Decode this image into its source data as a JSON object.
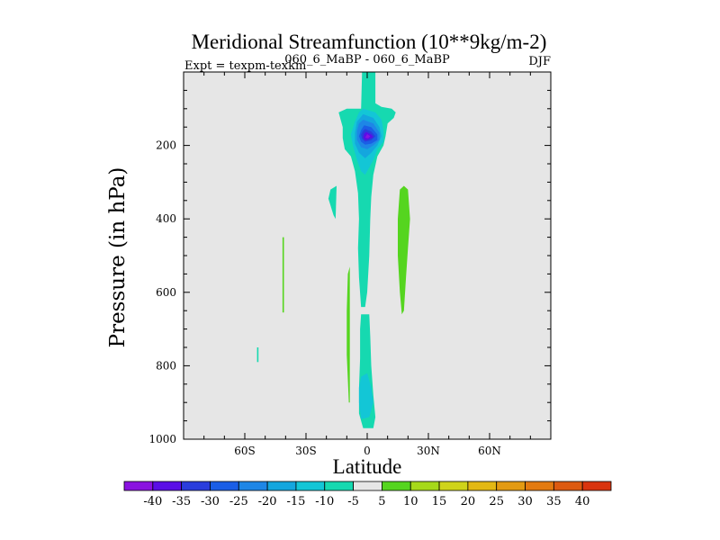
{
  "chart_data": {
    "type": "filled-contour",
    "title": "Meridional Streamfunction (10**9kg/m-2)",
    "subtitle_left": "Expt = texpm-texkm",
    "subtitle_center": "060_6_MaBP - 060_6_MaBP",
    "subtitle_right": "DJF",
    "xlabel": "Latitude",
    "ylabel": "Pressure (in hPa)",
    "xlim": [
      -90,
      90
    ],
    "ylim": [
      1000,
      0
    ],
    "x_ticks": [
      {
        "value": -60,
        "label": "60S"
      },
      {
        "value": -30,
        "label": "30S"
      },
      {
        "value": 0,
        "label": "0"
      },
      {
        "value": 30,
        "label": "30N"
      },
      {
        "value": 60,
        "label": "60N"
      }
    ],
    "y_ticks": [
      {
        "value": 200,
        "label": "200"
      },
      {
        "value": 400,
        "label": "400"
      },
      {
        "value": 600,
        "label": "600"
      },
      {
        "value": 800,
        "label": "800"
      },
      {
        "value": 1000,
        "label": "1000"
      }
    ],
    "background_fill": "#e6e6e6",
    "colorbar": {
      "labels": [
        "-40",
        "-35",
        "-30",
        "-25",
        "-20",
        "-15",
        "-10",
        "-5",
        "5",
        "10",
        "15",
        "20",
        "25",
        "30",
        "35",
        "40"
      ],
      "colors": [
        "#8a12e0",
        "#5a0ee6",
        "#2a3ddc",
        "#1a5ee6",
        "#1e86e6",
        "#14a6de",
        "#13c6d6",
        "#16d9b0",
        "#e6e6e6",
        "#55d51f",
        "#a6d91a",
        "#cfd41a",
        "#e3b814",
        "#e39a12",
        "#e37a10",
        "#dd5a10",
        "#d9340e"
      ]
    },
    "regions": [
      {
        "name": "upper-jet-neg5",
        "level": "-5",
        "color": "#16d9b0",
        "points": [
          [
            -2.5,
            0
          ],
          [
            4,
            0
          ],
          [
            4,
            85
          ],
          [
            7,
            95
          ],
          [
            12,
            100
          ],
          [
            14,
            110
          ],
          [
            13,
            125
          ],
          [
            10,
            140
          ],
          [
            9,
            175
          ],
          [
            8,
            200
          ],
          [
            5,
            230
          ],
          [
            3,
            280
          ],
          [
            2,
            340
          ],
          [
            1.5,
            400
          ],
          [
            1,
            500
          ],
          [
            0,
            600
          ],
          [
            -1,
            640
          ],
          [
            -3,
            640
          ],
          [
            -4,
            560
          ],
          [
            -4.5,
            480
          ],
          [
            -4,
            400
          ],
          [
            -4.5,
            330
          ],
          [
            -6,
            270
          ],
          [
            -8,
            230
          ],
          [
            -11,
            210
          ],
          [
            -12,
            180
          ],
          [
            -12,
            150
          ],
          [
            -13,
            130
          ],
          [
            -14,
            110
          ],
          [
            -10,
            100
          ],
          [
            -3,
            100
          ]
        ]
      },
      {
        "name": "upper-neg10",
        "level": "-10",
        "color": "#13c6d6",
        "points": [
          [
            -2,
            100
          ],
          [
            4,
            110
          ],
          [
            7,
            130
          ],
          [
            8,
            160
          ],
          [
            8,
            190
          ],
          [
            5,
            210
          ],
          [
            3,
            240
          ],
          [
            1,
            260
          ],
          [
            -1,
            280
          ],
          [
            -3,
            270
          ],
          [
            -5,
            240
          ],
          [
            -7,
            200
          ],
          [
            -8,
            170
          ],
          [
            -6,
            135
          ],
          [
            -4,
            110
          ]
        ]
      },
      {
        "name": "upper-neg15",
        "level": "-15",
        "color": "#14a6de",
        "points": [
          [
            -2,
            115
          ],
          [
            3,
            125
          ],
          [
            6,
            150
          ],
          [
            7,
            175
          ],
          [
            5,
            200
          ],
          [
            2,
            220
          ],
          [
            -1,
            235
          ],
          [
            -4,
            220
          ],
          [
            -6,
            195
          ],
          [
            -6,
            165
          ],
          [
            -5,
            135
          ]
        ]
      },
      {
        "name": "upper-neg20",
        "level": "-20",
        "color": "#1e86e6",
        "points": [
          [
            -2,
            130
          ],
          [
            3,
            140
          ],
          [
            6,
            165
          ],
          [
            6,
            185
          ],
          [
            3,
            200
          ],
          [
            0,
            210
          ],
          [
            -3,
            205
          ],
          [
            -5,
            185
          ],
          [
            -5,
            160
          ],
          [
            -4,
            140
          ]
        ]
      },
      {
        "name": "upper-neg25",
        "level": "-25",
        "color": "#1a5ee6",
        "points": [
          [
            -1.5,
            145
          ],
          [
            2,
            150
          ],
          [
            5,
            170
          ],
          [
            5,
            185
          ],
          [
            2,
            195
          ],
          [
            -1,
            198
          ],
          [
            -3,
            190
          ],
          [
            -4,
            175
          ],
          [
            -3,
            158
          ]
        ]
      },
      {
        "name": "upper-neg30",
        "level": "-30",
        "color": "#2a3ddc",
        "points": [
          [
            -1,
            155
          ],
          [
            2,
            162
          ],
          [
            4,
            175
          ],
          [
            2,
            186
          ],
          [
            -1,
            190
          ],
          [
            -2.5,
            182
          ],
          [
            -3,
            170
          ],
          [
            -2,
            160
          ]
        ]
      },
      {
        "name": "upper-neg35",
        "level": "-35",
        "color": "#5a0ee6",
        "points": [
          [
            -0.5,
            163
          ],
          [
            2,
            170
          ],
          [
            3,
            177
          ],
          [
            1,
            183
          ],
          [
            -1,
            186
          ],
          [
            -2,
            178
          ],
          [
            -1.5,
            168
          ]
        ]
      },
      {
        "name": "upper-neg40",
        "level": "-40",
        "color": "#8a12e0",
        "points": [
          [
            0,
            169
          ],
          [
            1.5,
            175
          ],
          [
            0.5,
            181
          ],
          [
            -1,
            179
          ]
        ]
      },
      {
        "name": "lower-jet-neg5",
        "level": "-5",
        "color": "#16d9b0",
        "points": [
          [
            -3,
            660
          ],
          [
            1,
            660
          ],
          [
            1.5,
            720
          ],
          [
            2,
            800
          ],
          [
            3,
            880
          ],
          [
            4,
            940
          ],
          [
            3,
            970
          ],
          [
            -2,
            970
          ],
          [
            -4,
            930
          ],
          [
            -4,
            860
          ],
          [
            -3.5,
            780
          ],
          [
            -3.5,
            700
          ]
        ]
      },
      {
        "name": "lower-neg10",
        "level": "-10",
        "color": "#13c6d6",
        "points": [
          [
            -3,
            830
          ],
          [
            0,
            820
          ],
          [
            2,
            860
          ],
          [
            3,
            900
          ],
          [
            1,
            940
          ],
          [
            -3,
            945
          ],
          [
            -4,
            900
          ],
          [
            -4,
            860
          ]
        ]
      },
      {
        "name": "left-isolated-neg5",
        "level": "-5",
        "color": "#16d9b0",
        "points": [
          [
            -18,
            320
          ],
          [
            -15,
            310
          ],
          [
            -15.5,
            400
          ],
          [
            -16.5,
            390
          ],
          [
            -19,
            345
          ]
        ]
      },
      {
        "name": "tiny-neg5-south",
        "level": "-5",
        "color": "#16d9b0",
        "points": [
          [
            -54,
            750
          ],
          [
            -53.3,
            750
          ],
          [
            -53.3,
            790
          ],
          [
            -54,
            790
          ]
        ]
      },
      {
        "name": "thin-green-40S",
        "level": "5",
        "color": "#55d51f",
        "points": [
          [
            -41.5,
            450
          ],
          [
            -40.8,
            450
          ],
          [
            -40.8,
            655
          ],
          [
            -41.5,
            655
          ]
        ]
      },
      {
        "name": "green-strip-10S",
        "level": "5",
        "color": "#55d51f",
        "points": [
          [
            -9.5,
            550
          ],
          [
            -8.5,
            530
          ],
          [
            -8.5,
            900
          ],
          [
            -9,
            900
          ],
          [
            -10,
            770
          ],
          [
            -10,
            650
          ]
        ]
      },
      {
        "name": "green-strip-18N",
        "level": "5",
        "color": "#55d51f",
        "points": [
          [
            16,
            320
          ],
          [
            18,
            310
          ],
          [
            20,
            320
          ],
          [
            21,
            400
          ],
          [
            20,
            480
          ],
          [
            19,
            560
          ],
          [
            18,
            650
          ],
          [
            17,
            660
          ],
          [
            16,
            600
          ],
          [
            15,
            500
          ],
          [
            15,
            400
          ]
        ]
      }
    ]
  }
}
